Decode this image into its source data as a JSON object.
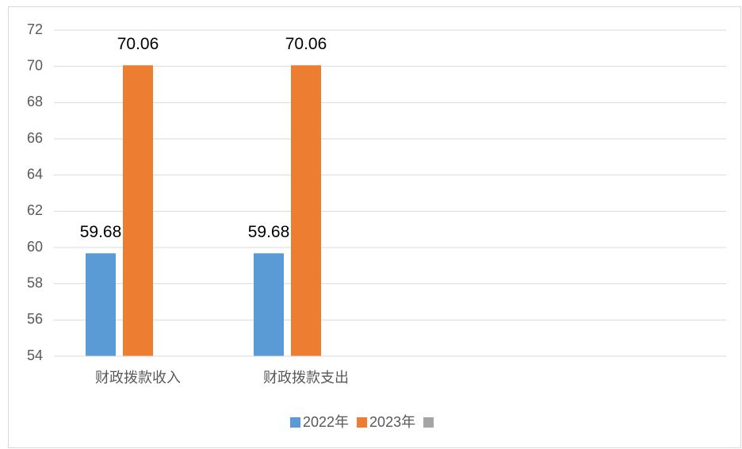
{
  "chart_data": {
    "type": "bar",
    "categories": [
      "财政拨款收入",
      "财政拨款支出",
      null,
      null
    ],
    "series": [
      {
        "name": "2022年",
        "color": "#5b9bd5",
        "values": [
          59.68,
          59.68,
          null,
          null
        ]
      },
      {
        "name": "2023年",
        "color": "#ed7d31",
        "values": [
          70.06,
          70.06,
          null,
          null
        ]
      },
      {
        "color": "#a5a5a5",
        "values": [
          null,
          null,
          null,
          null
        ]
      }
    ],
    "ylim": [
      54,
      72
    ],
    "yticks": [
      54,
      56,
      58,
      60,
      62,
      64,
      66,
      68,
      70,
      72
    ],
    "grid": true,
    "legend": "bottom",
    "data_labels": true
  }
}
